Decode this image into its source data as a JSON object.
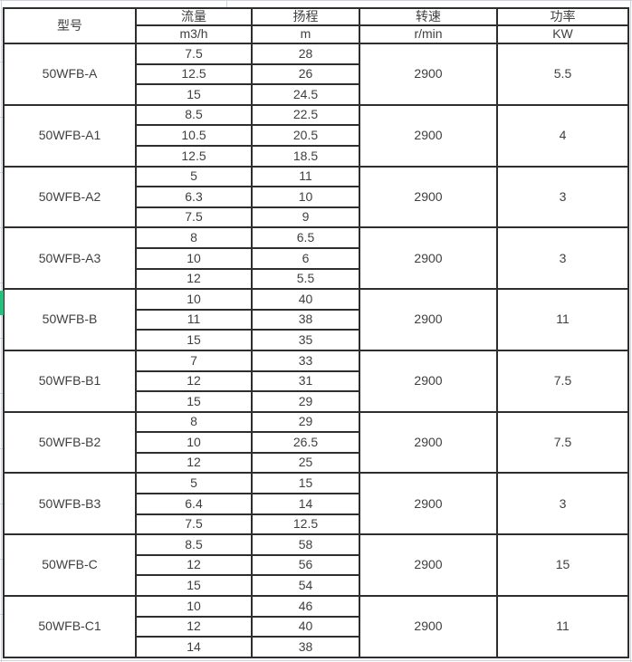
{
  "table": {
    "headers": {
      "model": "型号",
      "flow": "流量",
      "flow_unit": "m3/h",
      "head": "扬程",
      "head_unit": "m",
      "speed": "转速",
      "speed_unit": "r/min",
      "power": "功率",
      "power_unit": "KW"
    },
    "rows": [
      {
        "model": "50WFB-A",
        "speed": "2900",
        "power": "5.5",
        "points": [
          [
            "7.5",
            "28"
          ],
          [
            "12.5",
            "26"
          ],
          [
            "15",
            "24.5"
          ]
        ]
      },
      {
        "model": "50WFB-A1",
        "speed": "2900",
        "power": "4",
        "points": [
          [
            "8.5",
            "22.5"
          ],
          [
            "10.5",
            "20.5"
          ],
          [
            "12.5",
            "18.5"
          ]
        ]
      },
      {
        "model": "50WFB-A2",
        "speed": "2900",
        "power": "3",
        "points": [
          [
            "5",
            "11"
          ],
          [
            "6.3",
            "10"
          ],
          [
            "7.5",
            "9"
          ]
        ]
      },
      {
        "model": "50WFB-A3",
        "speed": "2900",
        "power": "3",
        "points": [
          [
            "8",
            "6.5"
          ],
          [
            "10",
            "6"
          ],
          [
            "12",
            "5.5"
          ]
        ]
      },
      {
        "model": "50WFB-B",
        "speed": "2900",
        "power": "11",
        "points": [
          [
            "10",
            "40"
          ],
          [
            "11",
            "38"
          ],
          [
            "15",
            "35"
          ]
        ]
      },
      {
        "model": "50WFB-B1",
        "speed": "2900",
        "power": "7.5",
        "points": [
          [
            "7",
            "33"
          ],
          [
            "12",
            "31"
          ],
          [
            "15",
            "29"
          ]
        ]
      },
      {
        "model": "50WFB-B2",
        "speed": "2900",
        "power": "7.5",
        "points": [
          [
            "8",
            "29"
          ],
          [
            "10",
            "26.5"
          ],
          [
            "12",
            "25"
          ]
        ]
      },
      {
        "model": "50WFB-B3",
        "speed": "2900",
        "power": "3",
        "points": [
          [
            "5",
            "15"
          ],
          [
            "6.4",
            "14"
          ],
          [
            "7.5",
            "12.5"
          ]
        ]
      },
      {
        "model": "50WFB-C",
        "speed": "2900",
        "power": "15",
        "points": [
          [
            "8.5",
            "58"
          ],
          [
            "12",
            "56"
          ],
          [
            "15",
            "54"
          ]
        ]
      },
      {
        "model": "50WFB-C1",
        "speed": "2900",
        "power": "11",
        "points": [
          [
            "10",
            "46"
          ],
          [
            "12",
            "40"
          ],
          [
            "14",
            "38"
          ]
        ]
      }
    ]
  },
  "colors": {
    "table_border": "#2e2e2e",
    "text": "#3f3f3f",
    "spreadsheet_gridline": "#ccd3de",
    "selection_marker_green": "#26bf7c"
  }
}
